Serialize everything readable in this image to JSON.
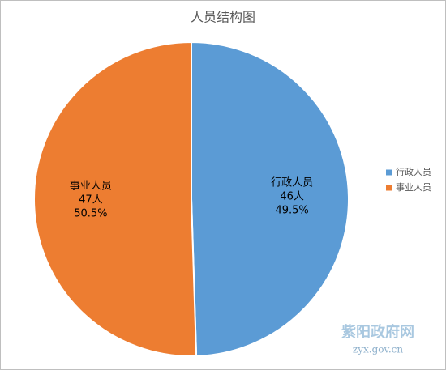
{
  "chart_data": {
    "type": "pie",
    "title": "人员结构图",
    "categories": [
      "行政人员",
      "事业人员"
    ],
    "values": [
      49.5,
      50.5
    ],
    "value_labels": [
      "49.5%",
      "50.5%"
    ],
    "counts": [
      46,
      47
    ],
    "count_labels": [
      "46人",
      "47人"
    ],
    "colors": [
      "#5b9bd5",
      "#ed7d31"
    ],
    "legend": "right",
    "watermark": {
      "title": "紫阳政府网",
      "url": "zyx.gov.cn"
    }
  }
}
